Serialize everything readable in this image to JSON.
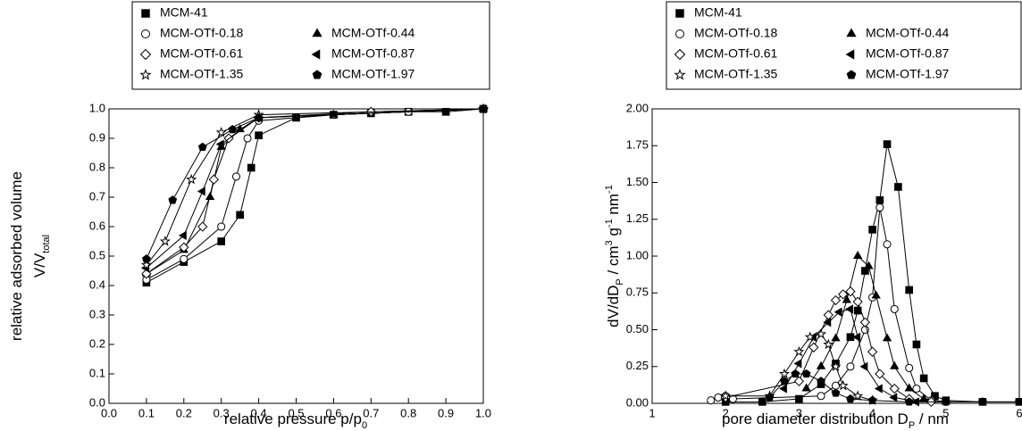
{
  "chart_data": [
    {
      "type": "line",
      "xlabel": [
        [
          {
            "text": "relative pressure p/p"
          },
          {
            "sub": "0"
          }
        ]
      ],
      "ylabel": [
        [
          {
            "text": "relative adsorbed volume"
          }
        ],
        [
          {
            "text": "V/V"
          },
          {
            "sub": "total"
          }
        ]
      ],
      "xlim": [
        0,
        1
      ],
      "ylim": [
        0,
        1
      ],
      "xticks": [
        {
          "value": 0,
          "label": "0.0"
        },
        0.1,
        0.2,
        0.3,
        0.4,
        0.5,
        0.6,
        0.7,
        0.8,
        0.9,
        {
          "value": 1,
          "label": "1.0"
        }
      ],
      "yticks": [
        {
          "value": 0,
          "label": "0.0"
        },
        0.1,
        0.2,
        0.3,
        0.4,
        0.5,
        0.6,
        0.7,
        0.8,
        0.9,
        {
          "value": 1,
          "label": "1.0"
        }
      ],
      "series": [
        {
          "name": "MCM-41",
          "color": "#000000",
          "marker": "square",
          "filled": true,
          "x": [
            0.1,
            0.2,
            0.3,
            0.35,
            0.38,
            0.4,
            0.5,
            0.6,
            0.7,
            0.8,
            0.9,
            1.0
          ],
          "values": [
            0.41,
            0.48,
            0.55,
            0.64,
            0.8,
            0.91,
            0.97,
            0.98,
            0.985,
            0.99,
            0.99,
            1.0
          ]
        },
        {
          "name": "MCM-OTf-0.18",
          "color": "#000000",
          "marker": "circle",
          "filled": false,
          "x": [
            0.1,
            0.2,
            0.3,
            0.34,
            0.37,
            0.4,
            0.6,
            0.8,
            1.0
          ],
          "values": [
            0.42,
            0.49,
            0.6,
            0.77,
            0.9,
            0.96,
            0.98,
            0.99,
            1.0
          ]
        },
        {
          "name": "MCM-OTf-0.44",
          "color": "#000000",
          "marker": "triangle-up",
          "filled": true,
          "x": [
            0.1,
            0.2,
            0.27,
            0.3,
            0.35,
            0.4,
            0.6,
            1.0
          ],
          "values": [
            0.44,
            0.52,
            0.7,
            0.87,
            0.93,
            0.97,
            0.98,
            1.0
          ]
        },
        {
          "name": "MCM-OTf-0.61",
          "color": "#000000",
          "marker": "diamond",
          "filled": false,
          "x": [
            0.1,
            0.2,
            0.25,
            0.28,
            0.32,
            0.4,
            0.7,
            1.0
          ],
          "values": [
            0.44,
            0.53,
            0.6,
            0.76,
            0.9,
            0.97,
            0.99,
            1.0
          ]
        },
        {
          "name": "MCM-OTf-0.87",
          "color": "#000000",
          "marker": "triangle-left",
          "filled": true,
          "x": [
            0.1,
            0.2,
            0.25,
            0.3,
            0.4,
            1.0
          ],
          "values": [
            0.46,
            0.57,
            0.72,
            0.88,
            0.97,
            1.0
          ]
        },
        {
          "name": "MCM-OTf-1.35",
          "color": "#000000",
          "marker": "star",
          "filled": false,
          "x": [
            0.1,
            0.15,
            0.22,
            0.3,
            0.4,
            1.0
          ],
          "values": [
            0.47,
            0.55,
            0.76,
            0.92,
            0.98,
            1.0
          ]
        },
        {
          "name": "MCM-OTf-1.97",
          "color": "#000000",
          "marker": "pentagon",
          "filled": true,
          "x": [
            0.1,
            0.17,
            0.25,
            0.33,
            0.4,
            1.0
          ],
          "values": [
            0.49,
            0.69,
            0.87,
            0.93,
            0.97,
            1.0
          ]
        }
      ]
    },
    {
      "type": "line",
      "xlabel": [
        [
          {
            "text": "pore diameter distribution D"
          },
          {
            "sub": "P"
          },
          {
            "text": " / nm"
          }
        ]
      ],
      "ylabel": [
        [
          {
            "text": "dV/dD"
          },
          {
            "sub": "P"
          },
          {
            "text": " / cm"
          },
          {
            "sup": "3"
          },
          {
            "text": " g"
          },
          {
            "sup": "-1"
          },
          {
            "text": " nm"
          },
          {
            "sup": "-1"
          }
        ]
      ],
      "xlim": [
        1,
        6
      ],
      "ylim": [
        0,
        2
      ],
      "xticks": [
        1,
        2,
        3,
        4,
        5,
        6
      ],
      "yticks": [
        {
          "value": 0,
          "label": "0.00"
        },
        {
          "value": 0.25,
          "label": "0.25"
        },
        {
          "value": 0.5,
          "label": "0.50"
        },
        {
          "value": 0.75,
          "label": "0.75"
        },
        {
          "value": 1,
          "label": "1.00"
        },
        {
          "value": 1.25,
          "label": "1.25"
        },
        {
          "value": 1.5,
          "label": "1.50"
        },
        {
          "value": 1.75,
          "label": "1.75"
        },
        {
          "value": 2,
          "label": "2.00"
        }
      ],
      "series": [
        {
          "name": "MCM-41",
          "color": "#000000",
          "marker": "square",
          "filled": true,
          "x": [
            2.0,
            2.5,
            3.0,
            3.3,
            3.5,
            3.7,
            3.8,
            3.9,
            4.0,
            4.1,
            4.2,
            4.35,
            4.5,
            4.6,
            4.7,
            4.85,
            5.0,
            5.5,
            6.0
          ],
          "values": [
            0.01,
            0.01,
            0.03,
            0.13,
            0.27,
            0.45,
            0.63,
            0.9,
            1.18,
            1.38,
            1.76,
            1.47,
            0.77,
            0.4,
            0.17,
            0.05,
            0.02,
            0.01,
            0.01
          ]
        },
        {
          "name": "MCM-OTf-0.18",
          "color": "#000000",
          "marker": "circle",
          "filled": false,
          "x": [
            1.8,
            1.9,
            2.0,
            2.1,
            3.3,
            3.5,
            3.7,
            3.9,
            4.0,
            4.1,
            4.2,
            4.3,
            4.5,
            4.6,
            4.8,
            5.0
          ],
          "values": [
            0.02,
            0.04,
            0.05,
            0.03,
            0.05,
            0.12,
            0.25,
            0.5,
            0.72,
            1.33,
            1.08,
            0.64,
            0.24,
            0.1,
            0.02,
            0.01
          ]
        },
        {
          "name": "MCM-OTf-0.44",
          "color": "#000000",
          "marker": "triangle-up",
          "filled": true,
          "x": [
            3.1,
            3.3,
            3.5,
            3.65,
            3.8,
            3.95,
            4.05,
            4.2,
            4.3,
            4.5,
            4.7,
            5.0
          ],
          "values": [
            0.1,
            0.25,
            0.44,
            0.7,
            1.0,
            0.93,
            0.73,
            0.44,
            0.25,
            0.1,
            0.03,
            0.01
          ]
        },
        {
          "name": "MCM-OTf-0.61",
          "color": "#000000",
          "marker": "diamond",
          "filled": false,
          "x": [
            2.0,
            3.0,
            3.2,
            3.4,
            3.5,
            3.6,
            3.7,
            3.8,
            3.9,
            4.0,
            4.1,
            4.3,
            4.5,
            4.8
          ],
          "values": [
            0.04,
            0.15,
            0.38,
            0.6,
            0.7,
            0.74,
            0.76,
            0.69,
            0.55,
            0.35,
            0.2,
            0.1,
            0.03,
            0.01
          ]
        },
        {
          "name": "MCM-OTf-0.87",
          "color": "#000000",
          "marker": "triangle-left",
          "filled": true,
          "x": [
            2.8,
            3.0,
            3.2,
            3.4,
            3.55,
            3.7,
            3.8,
            3.9,
            4.1,
            4.3,
            4.6
          ],
          "values": [
            0.1,
            0.27,
            0.45,
            0.55,
            0.62,
            0.64,
            0.45,
            0.25,
            0.1,
            0.04,
            0.01
          ]
        },
        {
          "name": "MCM-OTf-1.35",
          "color": "#000000",
          "marker": "star",
          "filled": false,
          "x": [
            2.0,
            2.6,
            2.8,
            3.0,
            3.15,
            3.3,
            3.4,
            3.5,
            3.6,
            3.8,
            4.0
          ],
          "values": [
            0.05,
            0.05,
            0.2,
            0.35,
            0.45,
            0.47,
            0.4,
            0.25,
            0.12,
            0.05,
            0.02
          ]
        },
        {
          "name": "MCM-OTf-1.97",
          "color": "#000000",
          "marker": "pentagon",
          "filled": true,
          "x": [
            2.6,
            2.8,
            2.95,
            3.1,
            3.3,
            3.5,
            3.7,
            4.0,
            4.5,
            5.0,
            5.5,
            6.0
          ],
          "values": [
            0.04,
            0.15,
            0.2,
            0.2,
            0.15,
            0.07,
            0.03,
            0.02,
            0.01,
            0.01,
            0.01,
            0.01
          ]
        }
      ]
    }
  ]
}
